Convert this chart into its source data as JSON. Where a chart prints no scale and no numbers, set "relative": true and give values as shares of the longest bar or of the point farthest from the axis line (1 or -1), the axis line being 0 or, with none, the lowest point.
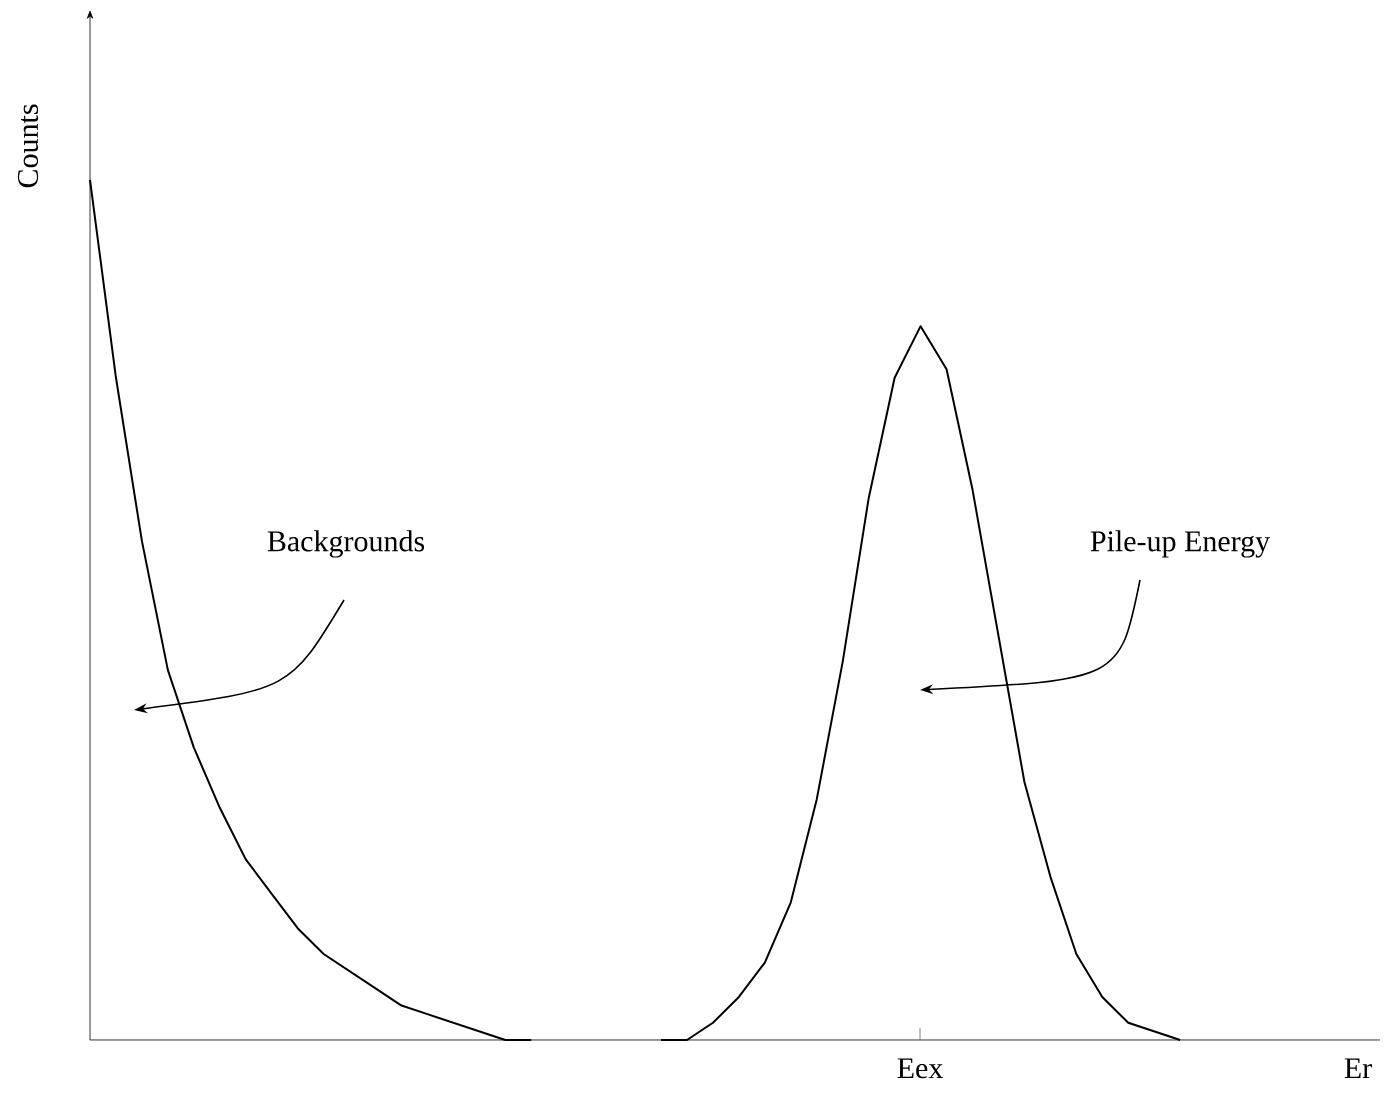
{
  "chart_data": {
    "type": "line",
    "relative": true,
    "ylabel": "Counts",
    "categories": [
      null,
      null,
      null,
      null,
      null,
      null,
      null,
      null,
      null,
      null,
      null,
      null,
      null,
      null,
      null,
      null,
      null,
      null,
      null,
      null,
      null,
      null,
      null,
      null,
      null,
      null,
      null,
      null,
      null,
      null,
      null,
      null,
      null,
      null,
      null,
      null,
      null,
      null,
      null,
      null,
      null,
      null,
      null
    ],
    "series": [
      {
        "color": "#000000",
        "values": [
          1,
          0.77,
          0.58,
          0.43,
          0.34,
          0.27,
          0.21,
          0.17,
          0.13,
          0.1,
          0.08,
          0.06,
          0.04,
          0.03,
          0.02,
          0.01,
          0.0,
          0,
          null,
          null,
          null,
          null,
          null,
          null,
          null,
          null,
          null,
          null,
          null,
          null,
          null,
          null,
          null,
          null,
          null,
          null,
          null,
          null,
          null,
          null,
          null,
          null,
          null
        ]
      },
      {
        "color": "#000000",
        "values": [
          null,
          null,
          null,
          null,
          null,
          null,
          null,
          null,
          null,
          null,
          null,
          null,
          null,
          null,
          null,
          null,
          null,
          null,
          null,
          null,
          null,
          null,
          0,
          0.0,
          0.02,
          0.05,
          0.09,
          0.16,
          0.28,
          0.44,
          0.63,
          0.77,
          0.83,
          0.78,
          0.64,
          0.47,
          0.3,
          0.19,
          0.1,
          0.05,
          0.02,
          0.01,
          0
        ]
      }
    ],
    "annotations": [
      "Backgrounds",
      "Pile-up Energy",
      "Eex",
      "Er"
    ],
    "marker": "none",
    "line_style": "solid"
  }
}
